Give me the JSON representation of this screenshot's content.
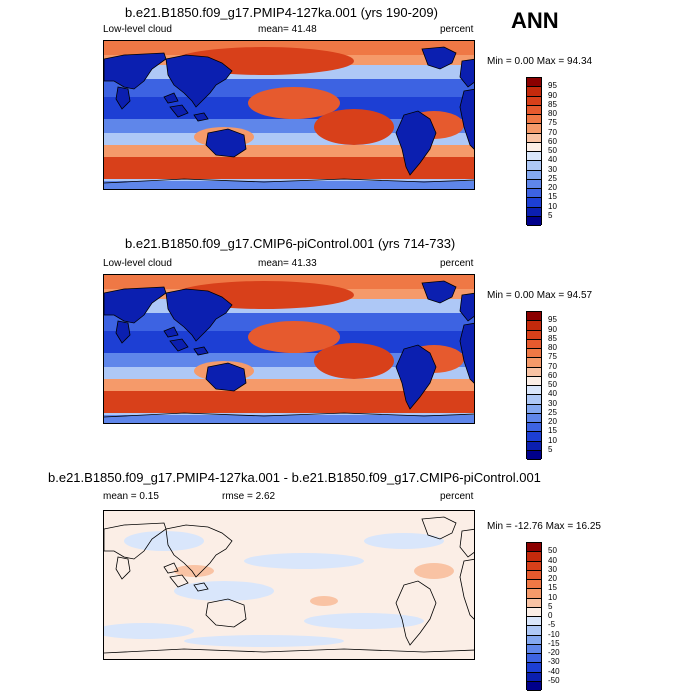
{
  "header": {
    "season": "ANN"
  },
  "panels": [
    {
      "title": "b.e21.B1850.f09_g17.PMIP4-127ka.001 (yrs 190-209)",
      "left": "Low-level cloud",
      "center": "mean=  41.48",
      "right": "percent",
      "minmax": "Min =   0.00 Max =  94.34",
      "style": "abs",
      "levels": [
        "95",
        "90",
        "85",
        "80",
        "75",
        "70",
        "60",
        "50",
        "40",
        "30",
        "25",
        "20",
        "15",
        "10",
        "5"
      ],
      "colors": [
        "#8b0000",
        "#c42a0c",
        "#d8401a",
        "#e65a2e",
        "#ef7845",
        "#f59a6a",
        "#f9c3a4",
        "#fbeee6",
        "#d9e6fb",
        "#aec8f6",
        "#84a8f0",
        "#5f86ea",
        "#3d63e2",
        "#1d3fd4",
        "#0b1fb0",
        "#00008b"
      ]
    },
    {
      "title": "b.e21.B1850.f09_g17.CMIP6-piControl.001 (yrs 714-733)",
      "left": "Low-level cloud",
      "center": "mean=  41.33",
      "right": "percent",
      "minmax": "Min =   0.00 Max =  94.57",
      "style": "abs",
      "levels": [
        "95",
        "90",
        "85",
        "80",
        "75",
        "70",
        "60",
        "50",
        "40",
        "30",
        "25",
        "20",
        "15",
        "10",
        "5"
      ],
      "colors": [
        "#8b0000",
        "#c42a0c",
        "#d8401a",
        "#e65a2e",
        "#ef7845",
        "#f59a6a",
        "#f9c3a4",
        "#fbeee6",
        "#d9e6fb",
        "#aec8f6",
        "#84a8f0",
        "#5f86ea",
        "#3d63e2",
        "#1d3fd4",
        "#0b1fb0",
        "#00008b"
      ]
    },
    {
      "title": "b.e21.B1850.f09_g17.PMIP4-127ka.001 - b.e21.B1850.f09_g17.CMIP6-piControl.001",
      "left": "mean =   0.15",
      "center": "rmse =   2.62",
      "right": "percent",
      "minmax": "Min = -12.76 Max =  16.25",
      "style": "diff",
      "levels": [
        "50",
        "40",
        "30",
        "20",
        "15",
        "10",
        "5",
        "0",
        "-5",
        "-10",
        "-15",
        "-20",
        "-30",
        "-40",
        "-50"
      ],
      "colors": [
        "#8b0000",
        "#c42a0c",
        "#d8401a",
        "#e65a2e",
        "#ef7845",
        "#f59a6a",
        "#f9c3a4",
        "#fbeee6",
        "#d9e6fb",
        "#aec8f6",
        "#84a8f0",
        "#5f86ea",
        "#3d63e2",
        "#1d3fd4",
        "#0b1fb0",
        "#00008b"
      ]
    }
  ]
}
